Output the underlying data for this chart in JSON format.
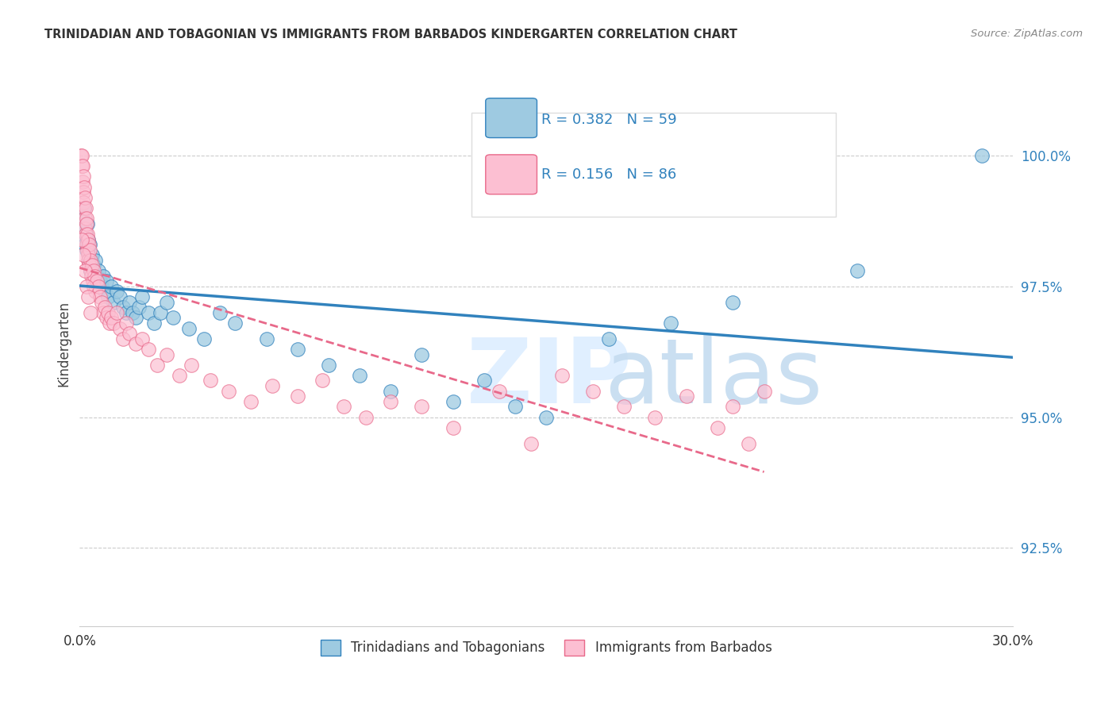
{
  "title": "TRINIDADIAN AND TOBAGONIAN VS IMMIGRANTS FROM BARBADOS KINDERGARTEN CORRELATION CHART",
  "source": "Source: ZipAtlas.com",
  "ylabel": "Kindergarten",
  "yticks": [
    92.5,
    95.0,
    97.5,
    100.0
  ],
  "ytick_labels": [
    "92.5%",
    "95.0%",
    "97.5%",
    "100.0%"
  ],
  "xlim": [
    0.0,
    30.0
  ],
  "ylim": [
    91.0,
    101.8
  ],
  "legend_R1": "R = 0.382",
  "legend_N1": "N = 59",
  "legend_R2": "R = 0.156",
  "legend_N2": "N = 86",
  "legend_label1": "Trinidadians and Tobagonians",
  "legend_label2": "Immigrants from Barbados",
  "color_blue": "#9ecae1",
  "color_pink": "#fcbfd2",
  "color_blue_line": "#3182bd",
  "color_pink_line": "#e8698a",
  "color_text": "#3182bd",
  "color_title": "#333333",
  "color_grid": "#cccccc",
  "blue_x": [
    0.05,
    0.08,
    0.1,
    0.12,
    0.15,
    0.18,
    0.2,
    0.22,
    0.25,
    0.28,
    0.3,
    0.32,
    0.35,
    0.4,
    0.45,
    0.5,
    0.55,
    0.6,
    0.65,
    0.7,
    0.75,
    0.8,
    0.85,
    0.9,
    1.0,
    1.1,
    1.2,
    1.3,
    1.4,
    1.5,
    1.6,
    1.7,
    1.8,
    1.9,
    2.0,
    2.2,
    2.4,
    2.6,
    2.8,
    3.0,
    3.5,
    4.0,
    4.5,
    5.0,
    6.0,
    7.0,
    8.0,
    9.0,
    10.0,
    11.0,
    12.0,
    13.0,
    14.0,
    15.0,
    17.0,
    19.0,
    21.0,
    25.0,
    29.0
  ],
  "blue_y": [
    98.5,
    98.6,
    98.8,
    98.4,
    99.0,
    98.3,
    98.5,
    98.2,
    98.7,
    98.4,
    98.0,
    98.3,
    97.8,
    98.1,
    97.9,
    98.0,
    97.7,
    97.8,
    97.6,
    97.5,
    97.7,
    97.4,
    97.6,
    97.3,
    97.5,
    97.2,
    97.4,
    97.3,
    97.1,
    97.0,
    97.2,
    97.0,
    96.9,
    97.1,
    97.3,
    97.0,
    96.8,
    97.0,
    97.2,
    96.9,
    96.7,
    96.5,
    97.0,
    96.8,
    96.5,
    96.3,
    96.0,
    95.8,
    95.5,
    96.2,
    95.3,
    95.7,
    95.2,
    95.0,
    96.5,
    96.8,
    97.2,
    97.8,
    100.0
  ],
  "pink_x": [
    0.05,
    0.07,
    0.08,
    0.09,
    0.1,
    0.11,
    0.12,
    0.13,
    0.14,
    0.15,
    0.16,
    0.17,
    0.18,
    0.19,
    0.2,
    0.21,
    0.22,
    0.23,
    0.24,
    0.25,
    0.26,
    0.27,
    0.28,
    0.29,
    0.3,
    0.32,
    0.34,
    0.36,
    0.38,
    0.4,
    0.42,
    0.44,
    0.46,
    0.48,
    0.5,
    0.55,
    0.6,
    0.65,
    0.7,
    0.75,
    0.8,
    0.85,
    0.9,
    0.95,
    1.0,
    1.1,
    1.2,
    1.3,
    1.4,
    1.5,
    1.6,
    1.8,
    2.0,
    2.2,
    2.5,
    2.8,
    3.2,
    3.6,
    4.2,
    4.8,
    5.5,
    6.2,
    7.0,
    7.8,
    8.5,
    9.2,
    10.0,
    11.0,
    12.0,
    13.5,
    14.5,
    15.5,
    16.5,
    17.5,
    18.5,
    19.5,
    20.5,
    21.0,
    21.5,
    22.0,
    0.08,
    0.12,
    0.17,
    0.22,
    0.28,
    0.35
  ],
  "pink_y": [
    100.0,
    99.8,
    100.0,
    99.5,
    99.8,
    99.3,
    99.6,
    99.1,
    99.4,
    99.0,
    98.8,
    99.2,
    98.6,
    99.0,
    98.5,
    98.8,
    98.3,
    98.7,
    98.2,
    98.5,
    98.1,
    98.4,
    98.0,
    98.3,
    97.9,
    98.2,
    97.8,
    98.0,
    97.7,
    97.9,
    97.6,
    97.8,
    97.5,
    97.7,
    97.4,
    97.6,
    97.5,
    97.3,
    97.2,
    97.0,
    97.1,
    96.9,
    97.0,
    96.8,
    96.9,
    96.8,
    97.0,
    96.7,
    96.5,
    96.8,
    96.6,
    96.4,
    96.5,
    96.3,
    96.0,
    96.2,
    95.8,
    96.0,
    95.7,
    95.5,
    95.3,
    95.6,
    95.4,
    95.7,
    95.2,
    95.0,
    95.3,
    95.2,
    94.8,
    95.5,
    94.5,
    95.8,
    95.5,
    95.2,
    95.0,
    95.4,
    94.8,
    95.2,
    94.5,
    95.5,
    98.4,
    98.1,
    97.8,
    97.5,
    97.3,
    97.0
  ]
}
